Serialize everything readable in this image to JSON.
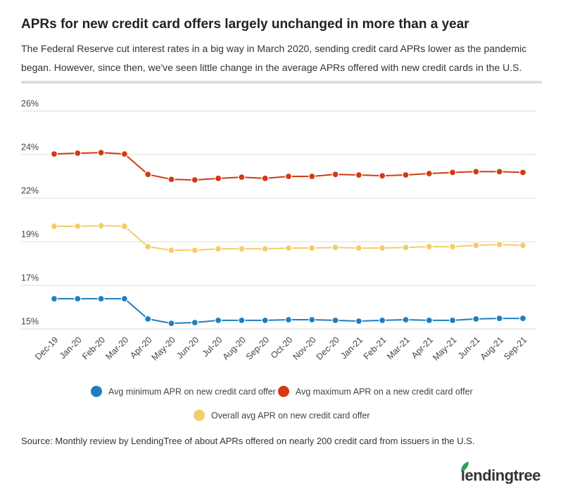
{
  "chart_data": {
    "type": "line",
    "title": "APRs for new credit card offers largely unchanged in more than a year",
    "subtitle": "The Federal Reserve cut interest rates in a big way in March 2020, sending credit card APRs lower as the pandemic began. However, since then, we've seen little change in the average APRs offered with new credit cards in the U.S.",
    "categories": [
      "Dec-19",
      "Jan-20",
      "Feb-20",
      "Mar-20",
      "Apr-20",
      "May-20",
      "Jun-20",
      "Jul-20",
      "Aug-20",
      "Sep-20",
      "Oct-20",
      "Nov-20",
      "Dec-20",
      "Jan-21",
      "Feb-21",
      "Mar-21",
      "Apr-21",
      "May-21",
      "Jun-21",
      "Aug-21",
      "Sep-21"
    ],
    "series": [
      {
        "name": "Avg minimum APR on new credit card offer",
        "color": "#1f7ec1",
        "values": [
          16.52,
          16.52,
          16.52,
          16.52,
          15.5,
          15.28,
          15.32,
          15.43,
          15.43,
          15.43,
          15.46,
          15.46,
          15.43,
          15.39,
          15.43,
          15.46,
          15.43,
          15.43,
          15.5,
          15.53,
          15.53
        ]
      },
      {
        "name": "Avg maximum APR on a new credit card offer",
        "color": "#d23a12",
        "values": [
          23.83,
          23.87,
          23.9,
          23.83,
          22.8,
          22.55,
          22.52,
          22.6,
          22.66,
          22.6,
          22.7,
          22.7,
          22.8,
          22.77,
          22.73,
          22.77,
          22.84,
          22.9,
          22.94,
          22.94,
          22.9
        ]
      },
      {
        "name": "Overall avg APR on new credit card offer",
        "color": "#f2cd6a",
        "values": [
          20.18,
          20.18,
          20.21,
          20.18,
          19.15,
          18.97,
          18.97,
          19.04,
          19.04,
          19.04,
          19.08,
          19.08,
          19.11,
          19.08,
          19.08,
          19.11,
          19.15,
          19.15,
          19.22,
          19.26,
          19.22
        ]
      }
    ],
    "ylim": [
      15,
      26
    ],
    "yticks": [
      {
        "value": 15,
        "label": "15%"
      },
      {
        "value": 17.2,
        "label": "17%"
      },
      {
        "value": 19.4,
        "label": "19%"
      },
      {
        "value": 21.6,
        "label": "22%"
      },
      {
        "value": 23.8,
        "label": "24%"
      },
      {
        "value": 26,
        "label": "26%"
      }
    ],
    "grid": true,
    "source": "Source: Monthly review by LendingTree of about APRs offered on nearly 200 credit card from issuers in the U.S.",
    "logo": "lendingtree"
  }
}
